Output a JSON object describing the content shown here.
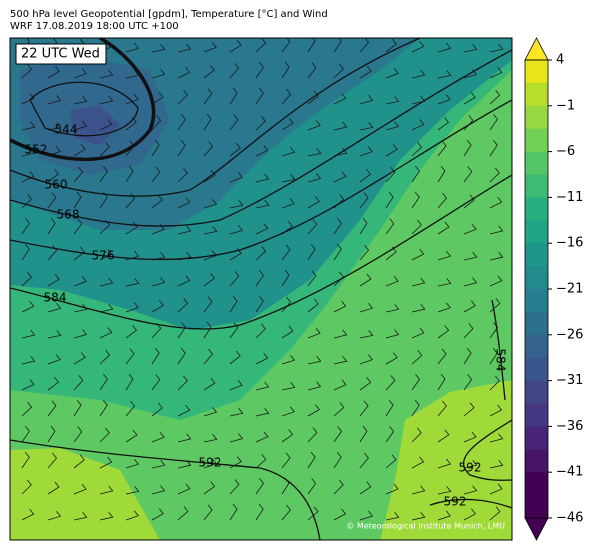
{
  "header": {
    "title": "500 hPa level Geopotential [gpdm], Temperature [°C] and Wind",
    "subtitle": "WRF 17.08.2019 18:00 UTC +100"
  },
  "map": {
    "time_label": "22 UTC Wed",
    "contour_labels": [
      "544",
      "552",
      "560",
      "568",
      "576",
      "584",
      "584",
      "592",
      "592",
      "592"
    ],
    "credit": "© Meteorological Institute Munich, LMU"
  },
  "colorbar": {
    "labels": [
      "4",
      "−1",
      "−6",
      "−11",
      "−16",
      "−21",
      "−26",
      "−31",
      "−36",
      "−41",
      "−46"
    ]
  }
}
